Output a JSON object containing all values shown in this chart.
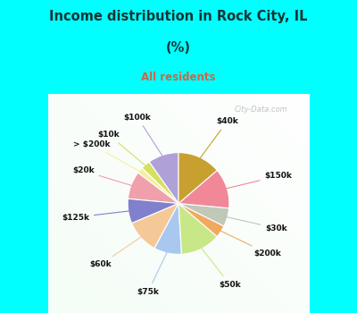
{
  "title_line1": "Income distribution in Rock City, IL",
  "title_line2": "(%)",
  "subtitle": "All residents",
  "title_color": "#1a3333",
  "subtitle_color": "#cc6644",
  "fig_bg": "#00ffff",
  "chart_bg_color": "#d8ede0",
  "labels": [
    "$100k",
    "$10k",
    "> $200k",
    "$20k",
    "$125k",
    "$60k",
    "$75k",
    "$50k",
    "$200k",
    "$30k",
    "$150k",
    "$40k"
  ],
  "values": [
    10.0,
    3.0,
    2.0,
    9.0,
    8.0,
    11.0,
    9.0,
    13.0,
    4.0,
    6.0,
    13.0,
    14.0
  ],
  "colors": [
    "#b0a0d8",
    "#d4e060",
    "#f5f0a0",
    "#f0a0aa",
    "#8080cc",
    "#f5c898",
    "#a8c8f0",
    "#c8e888",
    "#f0aa60",
    "#c0c8b8",
    "#f08898",
    "#c8a030"
  ],
  "startangle": 90,
  "figsize": [
    4.0,
    3.5
  ],
  "dpi": 100,
  "watermark": "City-Data.com"
}
